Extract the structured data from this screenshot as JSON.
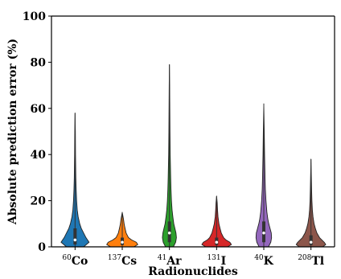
{
  "chart_data": {
    "type": "violin",
    "title": "",
    "xlabel": "Radionuclides",
    "ylabel": "Absolute prediction error (%)",
    "ylim": [
      0,
      100
    ],
    "yticks": [
      0,
      20,
      40,
      60,
      80,
      100
    ],
    "grid": false,
    "legend": "none",
    "categories": [
      {
        "label": "Co",
        "sup": "60"
      },
      {
        "label": "Cs",
        "sup": "137"
      },
      {
        "label": "Ar",
        "sup": "41"
      },
      {
        "label": "I",
        "sup": "131"
      },
      {
        "label": "K",
        "sup": "40"
      },
      {
        "label": "Tl",
        "sup": "208"
      }
    ],
    "series": [
      {
        "category": "60Co",
        "color": "#1f77b4",
        "min": 0,
        "max": 58,
        "median": 3,
        "q1": 1,
        "q3": 8,
        "profile": [
          [
            0,
            0.55
          ],
          [
            2,
            0.9
          ],
          [
            4,
            0.7
          ],
          [
            6,
            0.55
          ],
          [
            8,
            0.4
          ],
          [
            10,
            0.3
          ],
          [
            13,
            0.2
          ],
          [
            16,
            0.14
          ],
          [
            20,
            0.1
          ],
          [
            25,
            0.07
          ],
          [
            30,
            0.05
          ],
          [
            40,
            0.03
          ],
          [
            50,
            0.02
          ],
          [
            58,
            0.0
          ]
        ]
      },
      {
        "category": "137Cs",
        "color": "#ff7f0e",
        "min": 0,
        "max": 15,
        "median": 2,
        "q1": 0.8,
        "q3": 4,
        "profile": [
          [
            0,
            0.75
          ],
          [
            1,
            1.0
          ],
          [
            2,
            0.9
          ],
          [
            3,
            0.6
          ],
          [
            4,
            0.4
          ],
          [
            6,
            0.25
          ],
          [
            8,
            0.18
          ],
          [
            10,
            0.12
          ],
          [
            12,
            0.08
          ],
          [
            15,
            0.0
          ]
        ]
      },
      {
        "category": "41Ar",
        "color": "#2ca02c",
        "min": 0,
        "max": 79,
        "median": 6,
        "q1": 2,
        "q3": 11,
        "profile": [
          [
            0,
            0.25
          ],
          [
            2,
            0.4
          ],
          [
            4,
            0.45
          ],
          [
            6,
            0.42
          ],
          [
            8,
            0.35
          ],
          [
            10,
            0.28
          ],
          [
            13,
            0.22
          ],
          [
            16,
            0.17
          ],
          [
            20,
            0.13
          ],
          [
            25,
            0.1
          ],
          [
            30,
            0.08
          ],
          [
            40,
            0.05
          ],
          [
            50,
            0.035
          ],
          [
            60,
            0.025
          ],
          [
            70,
            0.015
          ],
          [
            79,
            0.0
          ]
        ]
      },
      {
        "category": "131I",
        "color": "#d62728",
        "min": 0,
        "max": 22,
        "median": 2,
        "q1": 0.8,
        "q3": 4,
        "profile": [
          [
            0,
            0.7
          ],
          [
            1,
            0.95
          ],
          [
            2,
            0.85
          ],
          [
            3,
            0.6
          ],
          [
            4,
            0.45
          ],
          [
            6,
            0.3
          ],
          [
            8,
            0.22
          ],
          [
            10,
            0.15
          ],
          [
            13,
            0.09
          ],
          [
            16,
            0.06
          ],
          [
            19,
            0.04
          ],
          [
            22,
            0.0
          ]
        ]
      },
      {
        "category": "40K",
        "color": "#9467bd",
        "min": 0,
        "max": 62,
        "median": 6,
        "q1": 2,
        "q3": 11,
        "profile": [
          [
            0,
            0.3
          ],
          [
            2,
            0.45
          ],
          [
            4,
            0.5
          ],
          [
            6,
            0.48
          ],
          [
            8,
            0.4
          ],
          [
            10,
            0.32
          ],
          [
            12,
            0.26
          ],
          [
            15,
            0.2
          ],
          [
            20,
            0.14
          ],
          [
            25,
            0.1
          ],
          [
            30,
            0.08
          ],
          [
            40,
            0.05
          ],
          [
            50,
            0.03
          ],
          [
            62,
            0.0
          ]
        ]
      },
      {
        "category": "208Tl",
        "color": "#8c564b",
        "min": 0,
        "max": 38,
        "median": 2,
        "q1": 0.8,
        "q3": 5,
        "profile": [
          [
            0,
            0.75
          ],
          [
            1,
            0.95
          ],
          [
            2,
            0.85
          ],
          [
            4,
            0.55
          ],
          [
            6,
            0.38
          ],
          [
            8,
            0.28
          ],
          [
            10,
            0.2
          ],
          [
            13,
            0.13
          ],
          [
            16,
            0.09
          ],
          [
            20,
            0.06
          ],
          [
            25,
            0.04
          ],
          [
            30,
            0.025
          ],
          [
            38,
            0.0
          ]
        ]
      }
    ]
  }
}
